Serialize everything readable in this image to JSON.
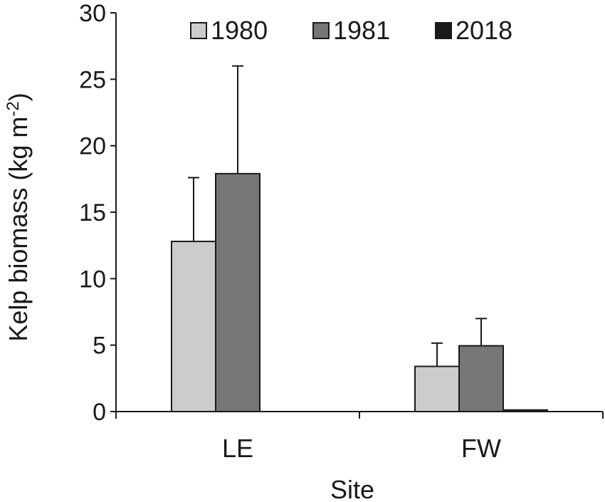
{
  "chart_data": {
    "type": "bar",
    "categories": [
      "LE",
      "FW"
    ],
    "series": [
      {
        "name": "1980",
        "color": "#cccccc",
        "values": [
          12.8,
          3.4
        ],
        "errors": [
          4.8,
          1.75
        ]
      },
      {
        "name": "1981",
        "color": "#767676",
        "values": [
          17.9,
          4.95
        ],
        "errors": [
          8.1,
          2.05
        ]
      },
      {
        "name": "2018",
        "color": "#1a1a1a",
        "values": [
          0,
          0.12
        ],
        "errors": [
          0,
          0
        ]
      }
    ],
    "xlabel": "Site",
    "ylabel_main": "Kelp biomass (kg m",
    "ylabel_sup": "-2",
    "ylabel_end": ")",
    "ylim": [
      0,
      30
    ],
    "yticks": [
      0,
      5,
      10,
      15,
      20,
      25,
      30
    ],
    "grid": false,
    "legend_position": "top-right",
    "error_bars": true
  }
}
